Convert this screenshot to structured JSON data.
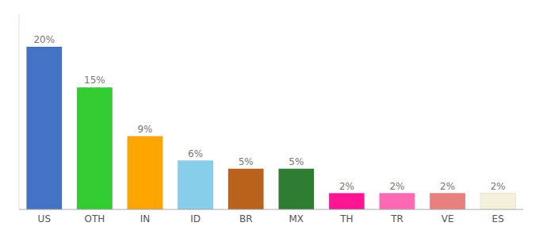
{
  "chart_data": {
    "type": "bar",
    "categories": [
      "US",
      "OTH",
      "IN",
      "ID",
      "BR",
      "MX",
      "TH",
      "TR",
      "VE",
      "ES"
    ],
    "values": [
      20,
      15,
      9,
      6,
      5,
      5,
      2,
      2,
      2,
      2
    ],
    "value_labels": [
      "20%",
      "15%",
      "9%",
      "6%",
      "5%",
      "5%",
      "2%",
      "2%",
      "2%",
      "2%"
    ],
    "colors": [
      "#4472C4",
      "#33CC33",
      "#FFA500",
      "#87CEEB",
      "#B8621B",
      "#2E7D32",
      "#FF1493",
      "#FF69B4",
      "#E88080",
      "#F5F0DC"
    ],
    "ylim": [
      0,
      24
    ],
    "grid": false,
    "data_labels": true,
    "tick_labels": "x"
  }
}
